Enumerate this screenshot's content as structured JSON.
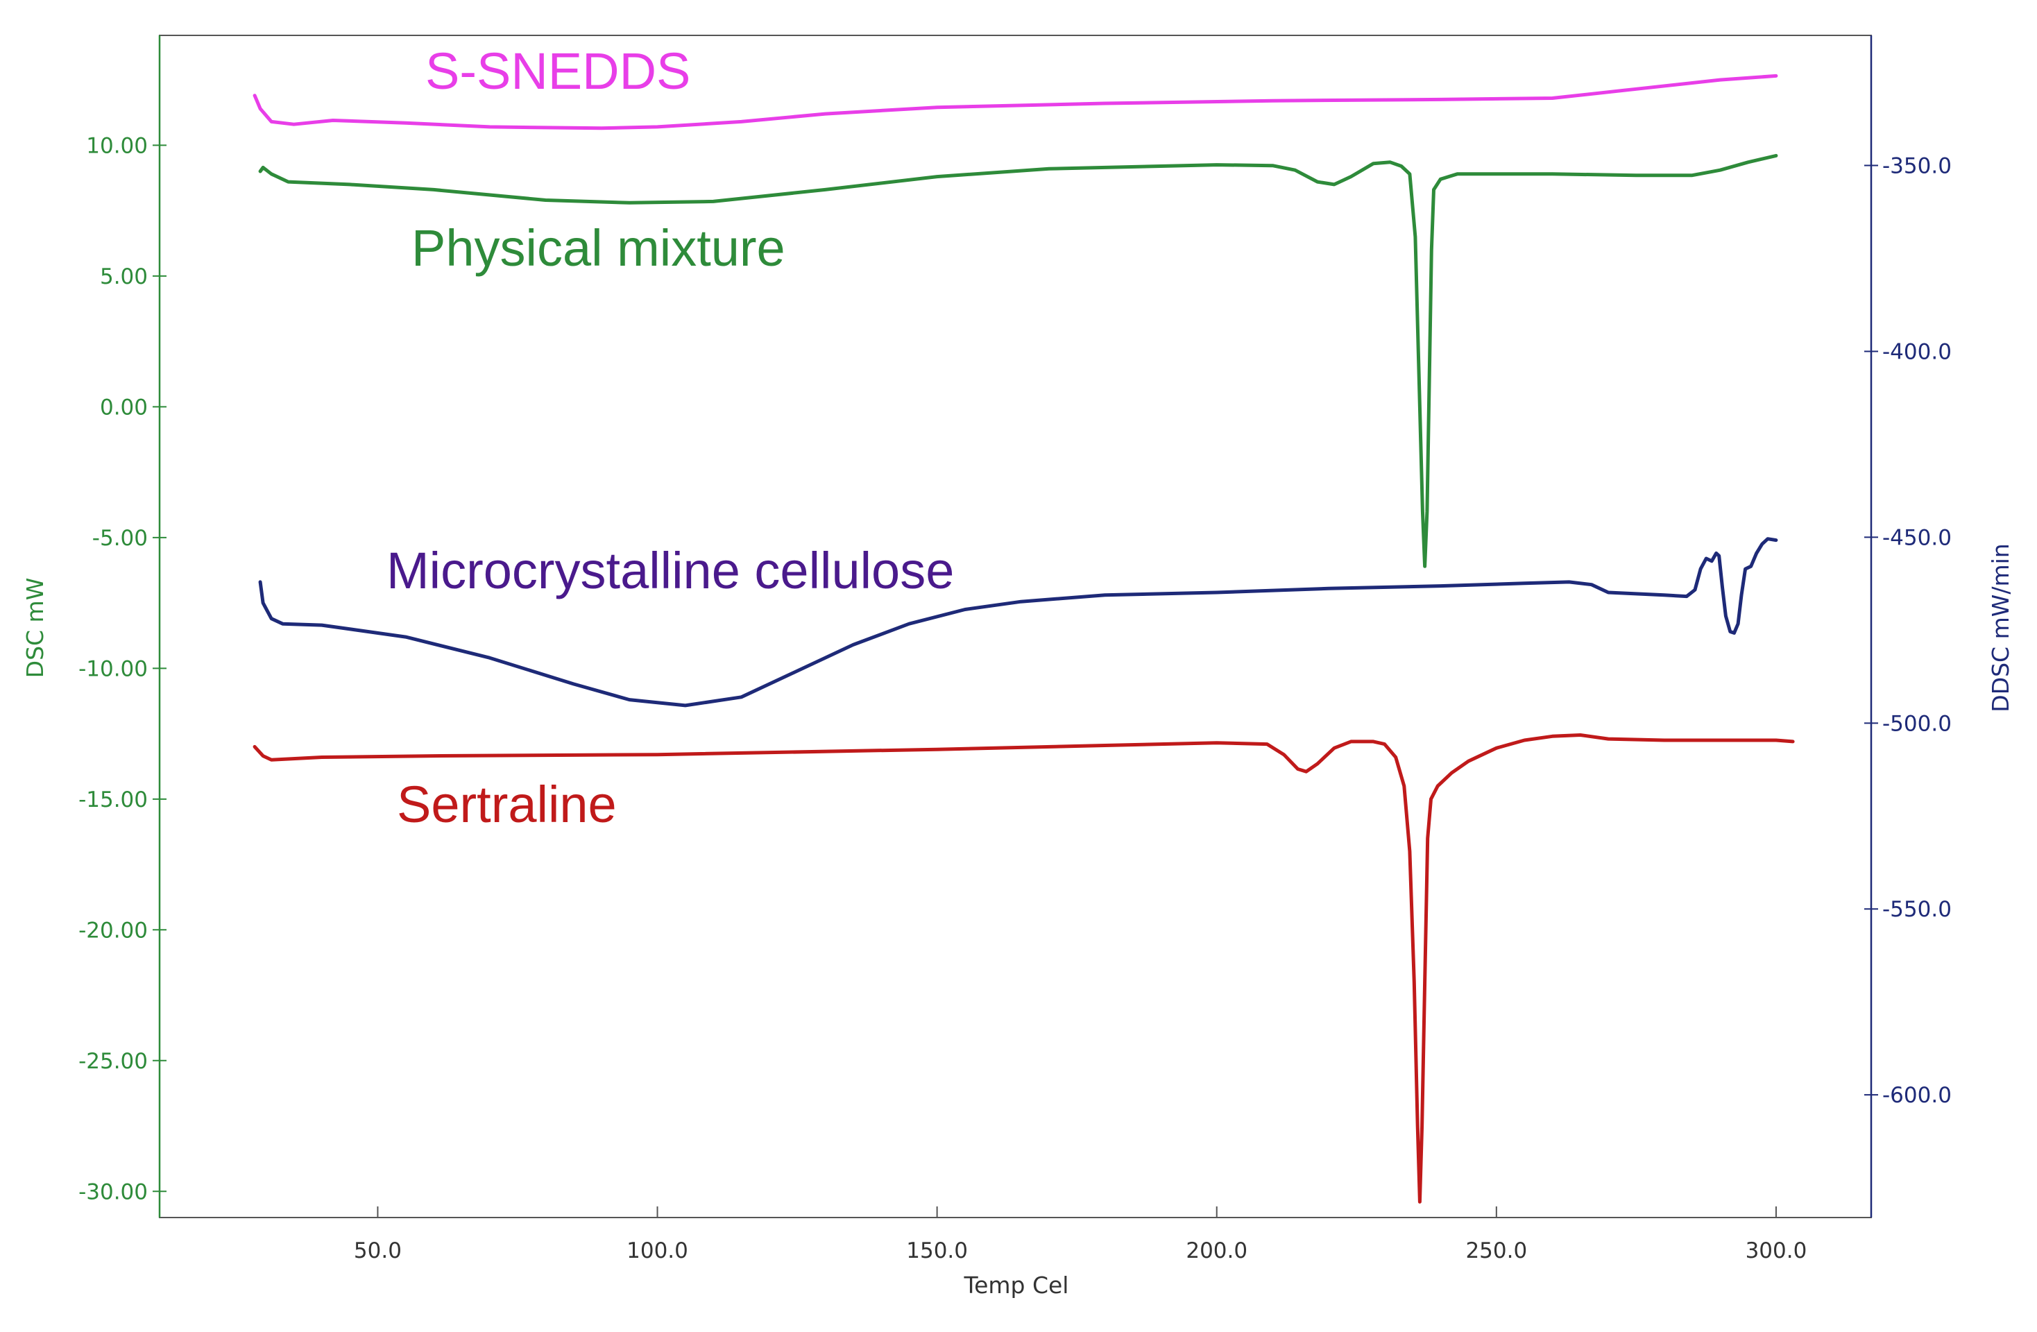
{
  "chart_data": {
    "type": "line",
    "title": "",
    "xlabel": "Temp Cel",
    "ylabel_left": "DSC mW",
    "ylabel_right": "DDSC mW/min",
    "xlim": [
      11,
      317
    ],
    "ylim_left": [
      -31,
      14.2
    ],
    "ylim_right": [
      -633,
      -315
    ],
    "x_ticks": [
      {
        "value": 50,
        "label": "50.0"
      },
      {
        "value": 100,
        "label": "100.0"
      },
      {
        "value": 150,
        "label": "150.0"
      },
      {
        "value": 200,
        "label": "200.0"
      },
      {
        "value": 250,
        "label": "250.0"
      },
      {
        "value": 300,
        "label": "300.0"
      }
    ],
    "y_ticks_left": [
      {
        "value": 10,
        "label": "10.00"
      },
      {
        "value": 5,
        "label": "5.00"
      },
      {
        "value": 0,
        "label": "0.00"
      },
      {
        "value": -5,
        "label": "-5.00"
      },
      {
        "value": -10,
        "label": "-10.00"
      },
      {
        "value": -15,
        "label": "-15.00"
      },
      {
        "value": -20,
        "label": "-20.00"
      },
      {
        "value": -25,
        "label": "-25.00"
      },
      {
        "value": -30,
        "label": "-30.00"
      }
    ],
    "y_ticks_right": [
      {
        "value": -350,
        "label": "-350.0"
      },
      {
        "value": -400,
        "label": "-400.0"
      },
      {
        "value": -450,
        "label": "-450.0"
      },
      {
        "value": -500,
        "label": "-500.0"
      },
      {
        "value": -550,
        "label": "-550.0"
      },
      {
        "value": -600,
        "label": "-600.0"
      }
    ],
    "series": [
      {
        "name": "S-SNEDDS",
        "label": "S-SNEDDS",
        "color": "#e83ee8",
        "axis": "left",
        "points": [
          [
            28,
            11.9
          ],
          [
            29,
            11.4
          ],
          [
            31,
            10.9
          ],
          [
            35,
            10.8
          ],
          [
            42,
            10.95
          ],
          [
            55,
            10.85
          ],
          [
            70,
            10.7
          ],
          [
            90,
            10.65
          ],
          [
            100,
            10.7
          ],
          [
            115,
            10.9
          ],
          [
            130,
            11.2
          ],
          [
            150,
            11.45
          ],
          [
            180,
            11.6
          ],
          [
            210,
            11.7
          ],
          [
            240,
            11.75
          ],
          [
            260,
            11.8
          ],
          [
            275,
            12.15
          ],
          [
            290,
            12.5
          ],
          [
            300,
            12.65
          ]
        ]
      },
      {
        "name": "Physical mixture",
        "label": "Physical mixture",
        "color": "#2e8b3a",
        "axis": "left",
        "points": [
          [
            29,
            9
          ],
          [
            29.5,
            9.15
          ],
          [
            31,
            8.9
          ],
          [
            34,
            8.6
          ],
          [
            45,
            8.5
          ],
          [
            60,
            8.3
          ],
          [
            80,
            7.9
          ],
          [
            95,
            7.8
          ],
          [
            110,
            7.85
          ],
          [
            130,
            8.3
          ],
          [
            150,
            8.8
          ],
          [
            170,
            9.1
          ],
          [
            190,
            9.2
          ],
          [
            200,
            9.25
          ],
          [
            210,
            9.22
          ],
          [
            214,
            9.05
          ],
          [
            218,
            8.6
          ],
          [
            221,
            8.5
          ],
          [
            224,
            8.8
          ],
          [
            228,
            9.3
          ],
          [
            231,
            9.35
          ],
          [
            233,
            9.2
          ],
          [
            234.5,
            8.9
          ],
          [
            235.5,
            6.5
          ],
          [
            236.3,
            0
          ],
          [
            236.8,
            -4
          ],
          [
            237.2,
            -6.1
          ],
          [
            237.6,
            -4
          ],
          [
            238,
            1
          ],
          [
            238.4,
            6
          ],
          [
            238.8,
            8.3
          ],
          [
            240,
            8.7
          ],
          [
            243,
            8.9
          ],
          [
            260,
            8.9
          ],
          [
            275,
            8.85
          ],
          [
            285,
            8.85
          ],
          [
            290,
            9.05
          ],
          [
            295,
            9.35
          ],
          [
            300,
            9.6
          ]
        ]
      },
      {
        "name": "Microcrystalline cellulose",
        "label": "Microcrystalline cellulose",
        "color": "#1e2a78",
        "axis": "left",
        "points": [
          [
            29,
            -6.7
          ],
          [
            29.5,
            -7.5
          ],
          [
            31,
            -8.1
          ],
          [
            33,
            -8.3
          ],
          [
            40,
            -8.35
          ],
          [
            55,
            -8.8
          ],
          [
            70,
            -9.6
          ],
          [
            85,
            -10.6
          ],
          [
            95,
            -11.2
          ],
          [
            105,
            -11.42
          ],
          [
            115,
            -11.1
          ],
          [
            125,
            -10.1
          ],
          [
            135,
            -9.1
          ],
          [
            145,
            -8.3
          ],
          [
            155,
            -7.75
          ],
          [
            165,
            -7.45
          ],
          [
            180,
            -7.2
          ],
          [
            200,
            -7.1
          ],
          [
            220,
            -6.95
          ],
          [
            240,
            -6.85
          ],
          [
            255,
            -6.75
          ],
          [
            263,
            -6.7
          ],
          [
            267,
            -6.8
          ],
          [
            270,
            -7.1
          ],
          [
            275,
            -7.15
          ],
          [
            280,
            -7.2
          ],
          [
            284,
            -7.25
          ],
          [
            285.5,
            -7
          ],
          [
            286.5,
            -6.2
          ],
          [
            287.5,
            -5.8
          ],
          [
            288.5,
            -5.9
          ],
          [
            289.3,
            -5.6
          ],
          [
            289.8,
            -5.7
          ],
          [
            290.4,
            -6.9
          ],
          [
            291,
            -8
          ],
          [
            291.8,
            -8.6
          ],
          [
            292.5,
            -8.65
          ],
          [
            293.2,
            -8.3
          ],
          [
            293.8,
            -7.2
          ],
          [
            294.5,
            -6.2
          ],
          [
            295.5,
            -6.1
          ],
          [
            296.5,
            -5.6
          ],
          [
            297.5,
            -5.25
          ],
          [
            298.5,
            -5.05
          ],
          [
            300,
            -5.1
          ]
        ]
      },
      {
        "name": "Sertraline",
        "label": "Sertraline",
        "color": "#c01a1a",
        "axis": "left",
        "points": [
          [
            28,
            -13
          ],
          [
            29.5,
            -13.35
          ],
          [
            31,
            -13.5
          ],
          [
            40,
            -13.4
          ],
          [
            60,
            -13.35
          ],
          [
            100,
            -13.3
          ],
          [
            150,
            -13.1
          ],
          [
            180,
            -12.95
          ],
          [
            200,
            -12.85
          ],
          [
            209,
            -12.9
          ],
          [
            212,
            -13.3
          ],
          [
            214.5,
            -13.85
          ],
          [
            216,
            -13.95
          ],
          [
            218,
            -13.65
          ],
          [
            221,
            -13.05
          ],
          [
            224,
            -12.8
          ],
          [
            228,
            -12.8
          ],
          [
            230,
            -12.9
          ],
          [
            232,
            -13.4
          ],
          [
            233.5,
            -14.5
          ],
          [
            234.5,
            -17
          ],
          [
            235.3,
            -22
          ],
          [
            235.9,
            -27.5
          ],
          [
            236.3,
            -30.4
          ],
          [
            236.7,
            -27.5
          ],
          [
            237.2,
            -22
          ],
          [
            237.7,
            -16.5
          ],
          [
            238.3,
            -15
          ],
          [
            239.5,
            -14.5
          ],
          [
            242,
            -14
          ],
          [
            245,
            -13.55
          ],
          [
            250,
            -13.05
          ],
          [
            255,
            -12.75
          ],
          [
            260,
            -12.6
          ],
          [
            265,
            -12.55
          ],
          [
            270,
            -12.7
          ],
          [
            280,
            -12.75
          ],
          [
            290,
            -12.75
          ],
          [
            300,
            -12.75
          ],
          [
            303,
            -12.8
          ]
        ]
      }
    ]
  }
}
